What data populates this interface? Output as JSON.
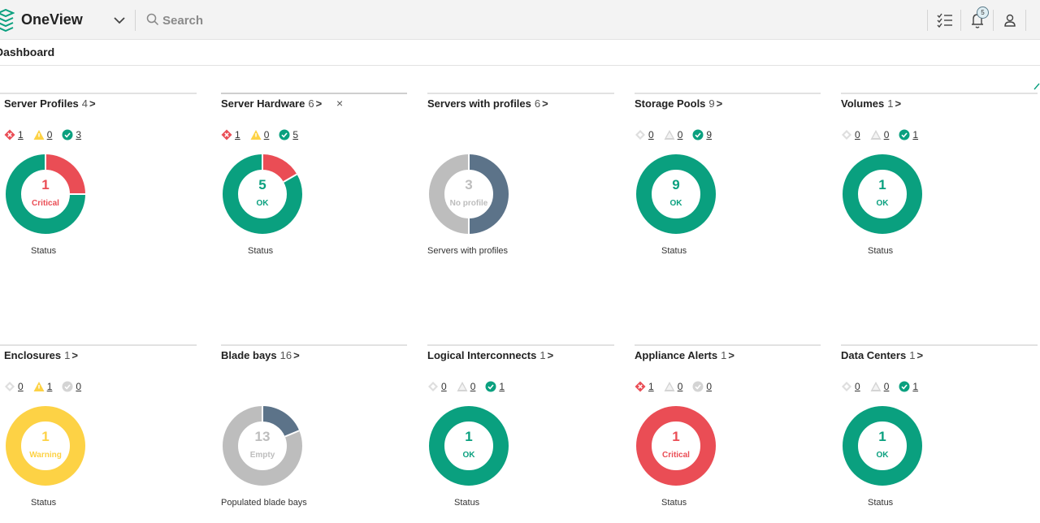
{
  "header": {
    "app_title": "OneView",
    "search_placeholder": "Search",
    "notification_count": "5"
  },
  "page": {
    "title": "Dashboard"
  },
  "colors": {
    "critical": "#ea4d55",
    "warning": "#fdd245",
    "ok": "#0aa07f",
    "disabled": "#bdbdbd",
    "used": "#5c7389",
    "empty_gray": "#bdbdbd"
  },
  "panels": [
    {
      "title": "Server Profiles",
      "count": "4",
      "chevron": ">",
      "statuses": [
        {
          "kind": "critical",
          "value": "1"
        },
        {
          "kind": "warning",
          "value": "0"
        },
        {
          "kind": "ok",
          "value": "3"
        }
      ],
      "donut": {
        "center_number": "1",
        "center_label": "Critical",
        "center_kind": "critical",
        "segments": [
          {
            "kind": "critical",
            "fraction": 0.25
          },
          {
            "kind": "ok",
            "fraction": 0.75
          }
        ]
      },
      "caption": "Status"
    },
    {
      "title": "Server Hardware",
      "count": "6",
      "chevron": ">",
      "close": "×",
      "statuses": [
        {
          "kind": "critical",
          "value": "1"
        },
        {
          "kind": "warning",
          "value": "0"
        },
        {
          "kind": "ok",
          "value": "5"
        }
      ],
      "donut": {
        "center_number": "5",
        "center_label": "OK",
        "center_kind": "ok",
        "segments": [
          {
            "kind": "critical",
            "fraction": 0.1667
          },
          {
            "kind": "ok",
            "fraction": 0.8333
          }
        ]
      },
      "caption": "Status"
    },
    {
      "title": "Servers with profiles",
      "count": "6",
      "chevron": ">",
      "statuses": [],
      "donut": {
        "center_number": "3",
        "center_label": "No profile",
        "center_kind": "disabled",
        "segments": [
          {
            "kind": "used",
            "fraction": 0.5
          },
          {
            "kind": "empty_gray",
            "fraction": 0.5
          }
        ]
      },
      "caption": "Servers with profiles"
    },
    {
      "title": "Storage Pools",
      "count": "9",
      "chevron": ">",
      "statuses": [
        {
          "kind": "disabled",
          "value": "0"
        },
        {
          "kind": "warning-gray",
          "value": "0"
        },
        {
          "kind": "ok",
          "value": "9"
        }
      ],
      "donut": {
        "center_number": "9",
        "center_label": "OK",
        "center_kind": "ok",
        "segments": [
          {
            "kind": "ok",
            "fraction": 1
          }
        ]
      },
      "caption": "Status"
    },
    {
      "title": "Volumes",
      "count": "1",
      "chevron": ">",
      "statuses": [
        {
          "kind": "disabled",
          "value": "0"
        },
        {
          "kind": "warning-gray",
          "value": "0"
        },
        {
          "kind": "ok",
          "value": "1"
        }
      ],
      "donut": {
        "center_number": "1",
        "center_label": "OK",
        "center_kind": "ok",
        "segments": [
          {
            "kind": "ok",
            "fraction": 1
          }
        ]
      },
      "caption": "Status"
    },
    {
      "title": "Enclosures",
      "count": "1",
      "chevron": ">",
      "statuses": [
        {
          "kind": "disabled",
          "value": "0"
        },
        {
          "kind": "warning",
          "value": "1"
        },
        {
          "kind": "ok-gray",
          "value": "0"
        }
      ],
      "donut": {
        "center_number": "1",
        "center_label": "Warning",
        "center_kind": "warning",
        "segments": [
          {
            "kind": "warning",
            "fraction": 1
          }
        ]
      },
      "caption": "Status"
    },
    {
      "title": "Blade bays",
      "count": "16",
      "chevron": ">",
      "statuses": [],
      "donut": {
        "center_number": "13",
        "center_label": "Empty",
        "center_kind": "disabled",
        "segments": [
          {
            "kind": "used",
            "fraction": 0.1875
          },
          {
            "kind": "empty_gray",
            "fraction": 0.8125
          }
        ]
      },
      "caption": "Populated blade bays"
    },
    {
      "title": "Logical Interconnects",
      "count": "1",
      "chevron": ">",
      "statuses": [
        {
          "kind": "disabled",
          "value": "0"
        },
        {
          "kind": "warning-gray",
          "value": "0"
        },
        {
          "kind": "ok",
          "value": "1"
        }
      ],
      "donut": {
        "center_number": "1",
        "center_label": "OK",
        "center_kind": "ok",
        "segments": [
          {
            "kind": "ok",
            "fraction": 1
          }
        ]
      },
      "caption": "Status"
    },
    {
      "title": "Appliance Alerts",
      "count": "1",
      "chevron": ">",
      "statuses": [
        {
          "kind": "critical",
          "value": "1"
        },
        {
          "kind": "warning-gray",
          "value": "0"
        },
        {
          "kind": "ok-gray",
          "value": "0"
        }
      ],
      "donut": {
        "center_number": "1",
        "center_label": "Critical",
        "center_kind": "critical",
        "segments": [
          {
            "kind": "critical",
            "fraction": 1
          }
        ]
      },
      "caption": "Status"
    },
    {
      "title": "Data Centers",
      "count": "1",
      "chevron": ">",
      "statuses": [
        {
          "kind": "disabled",
          "value": "0"
        },
        {
          "kind": "warning-gray",
          "value": "0"
        },
        {
          "kind": "ok",
          "value": "1"
        }
      ],
      "donut": {
        "center_number": "1",
        "center_label": "OK",
        "center_kind": "ok",
        "segments": [
          {
            "kind": "ok",
            "fraction": 1
          }
        ]
      },
      "caption": "Status"
    }
  ]
}
